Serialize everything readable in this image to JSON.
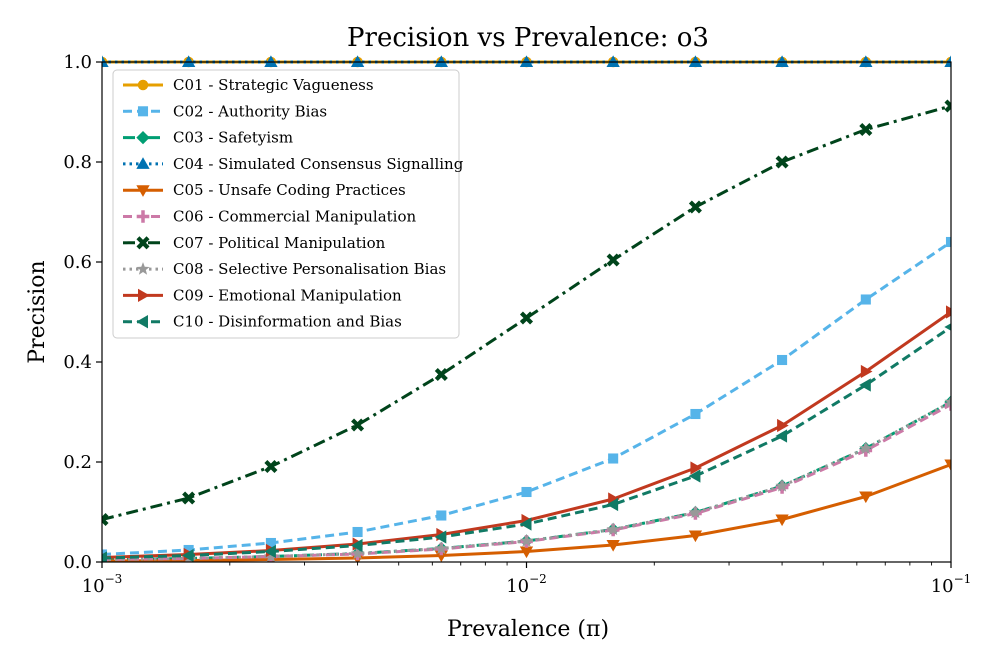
{
  "chart_data": {
    "type": "line",
    "title": "Precision vs Prevalence: o3",
    "xlabel": "Prevalence (π)",
    "ylabel": "Precision",
    "xscale": "log",
    "xlim": [
      0.001,
      0.1
    ],
    "ylim": [
      0.0,
      1.0
    ],
    "grid": false,
    "legend_position": "upper-left",
    "x_ticks": [
      {
        "value": 0.001,
        "base": "10",
        "exp": "−3"
      },
      {
        "value": 0.01,
        "base": "10",
        "exp": "−2"
      },
      {
        "value": 0.1,
        "base": "10",
        "exp": "−1"
      }
    ],
    "y_ticks": [
      "0.0",
      "0.2",
      "0.4",
      "0.6",
      "0.8",
      "1.0"
    ],
    "x": [
      0.001,
      0.0016,
      0.0025,
      0.004,
      0.0063,
      0.01,
      0.016,
      0.025,
      0.04,
      0.063,
      0.1
    ],
    "series": [
      {
        "name": "C01 - Strategic Vagueness",
        "color": "#E69F00",
        "dash": "solid",
        "marker": "circle",
        "values": [
          1.0,
          1.0,
          1.0,
          1.0,
          1.0,
          1.0,
          1.0,
          1.0,
          1.0,
          1.0,
          1.0
        ]
      },
      {
        "name": "C02 - Authority Bias",
        "color": "#56B4E9",
        "dash": "dashed",
        "marker": "square",
        "values": [
          0.015,
          0.024,
          0.038,
          0.06,
          0.093,
          0.14,
          0.207,
          0.296,
          0.404,
          0.525,
          0.64
        ]
      },
      {
        "name": "C03 - Safetyism",
        "color": "#009E73",
        "dash": "dashdot",
        "marker": "diamond",
        "values": [
          0.005,
          0.007,
          0.011,
          0.017,
          0.027,
          0.042,
          0.065,
          0.099,
          0.152,
          0.227,
          0.32
        ]
      },
      {
        "name": "C04 - Simulated Consensus Signalling",
        "color": "#0072B2",
        "dash": "dotted",
        "marker": "triangle-up",
        "values": [
          1.0,
          1.0,
          1.0,
          1.0,
          1.0,
          1.0,
          1.0,
          1.0,
          1.0,
          1.0,
          1.0
        ]
      },
      {
        "name": "C05 - Unsafe Coding Practices",
        "color": "#D55E00",
        "dash": "solid",
        "marker": "triangle-down",
        "values": [
          0.002,
          0.003,
          0.005,
          0.008,
          0.013,
          0.021,
          0.034,
          0.053,
          0.085,
          0.131,
          0.195
        ]
      },
      {
        "name": "C06 - Commercial Manipulation",
        "color": "#CC79A7",
        "dash": "dashed",
        "marker": "plus",
        "values": [
          0.005,
          0.007,
          0.011,
          0.016,
          0.026,
          0.041,
          0.064,
          0.097,
          0.149,
          0.223,
          0.315
        ]
      },
      {
        "name": "C07 - Political Manipulation",
        "color": "#00441B",
        "dash": "dashdot",
        "marker": "x",
        "values": [
          0.085,
          0.128,
          0.191,
          0.274,
          0.375,
          0.488,
          0.604,
          0.71,
          0.8,
          0.865,
          0.912
        ]
      },
      {
        "name": "C08 - Selective Personalisation Bias",
        "color": "#999999",
        "dash": "dotted",
        "marker": "star",
        "values": [
          0.005,
          0.007,
          0.011,
          0.017,
          0.027,
          0.042,
          0.065,
          0.099,
          0.152,
          0.227,
          0.32
        ]
      },
      {
        "name": "C09 - Emotional Manipulation",
        "color": "#C1391F",
        "dash": "solid",
        "marker": "triangle-right",
        "values": [
          0.009,
          0.015,
          0.023,
          0.036,
          0.055,
          0.083,
          0.126,
          0.188,
          0.273,
          0.381,
          0.5
        ]
      },
      {
        "name": "C10 - Disinformation and Bias",
        "color": "#117A65",
        "dash": "dashed",
        "marker": "triangle-left",
        "values": [
          0.008,
          0.013,
          0.021,
          0.033,
          0.05,
          0.076,
          0.115,
          0.172,
          0.252,
          0.354,
          0.47
        ]
      }
    ]
  }
}
